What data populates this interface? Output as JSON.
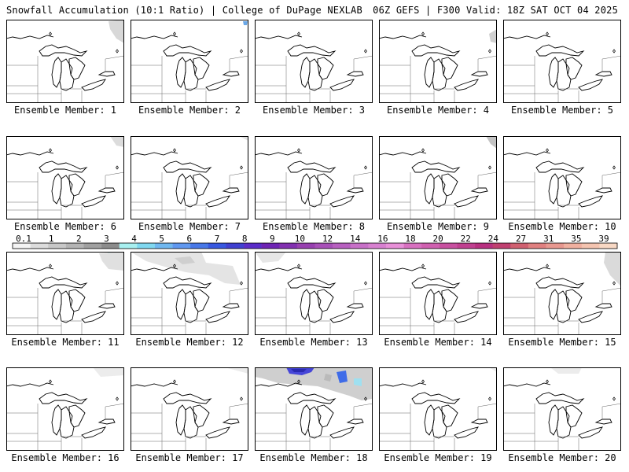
{
  "header": {
    "left_title": "Snowfall Accumulation (10:1 Ratio) | College of DuPage NEXLAB",
    "right_title": "06Z GEFS | F300 Valid: 18Z SAT OCT 04 2025"
  },
  "panels": [
    {
      "label": "Ensemble Member: 1"
    },
    {
      "label": "Ensemble Member: 2"
    },
    {
      "label": "Ensemble Member: 3"
    },
    {
      "label": "Ensemble Member: 4"
    },
    {
      "label": "Ensemble Member: 5"
    },
    {
      "label": "Ensemble Member: 6"
    },
    {
      "label": "Ensemble Member: 7"
    },
    {
      "label": "Ensemble Member: 8"
    },
    {
      "label": "Ensemble Member: 9"
    },
    {
      "label": "Ensemble Member: 10"
    },
    {
      "label": "Ensemble Member: 11"
    },
    {
      "label": "Ensemble Member: 12"
    },
    {
      "label": "Ensemble Member: 13"
    },
    {
      "label": "Ensemble Member: 14"
    },
    {
      "label": "Ensemble Member: 15"
    },
    {
      "label": "Ensemble Member: 16"
    },
    {
      "label": "Ensemble Member: 17"
    },
    {
      "label": "Ensemble Member: 18"
    },
    {
      "label": "Ensemble Member: 19"
    },
    {
      "label": "Ensemble Member: 20"
    }
  ],
  "colorbar": {
    "labels": [
      "0.1",
      "1",
      "2",
      "3",
      "4",
      "5",
      "6",
      "7",
      "8",
      "9",
      "10",
      "12",
      "14",
      "16",
      "18",
      "20",
      "22",
      "24",
      "27",
      "31",
      "35",
      "39"
    ],
    "colors": [
      "#f4f4f4",
      "#dcdcdc",
      "#c8c8c8",
      "#b4b4b4",
      "#a0a0a0",
      "#8c8c8c",
      "#a8f0f0",
      "#80d8f0",
      "#70b8f0",
      "#6098f0",
      "#4878e8",
      "#3858e0",
      "#4040d0",
      "#5a2cc8",
      "#6e24b4",
      "#8230b0",
      "#9840b0",
      "#a850b8",
      "#b860c0",
      "#c870c8",
      "#d880d0",
      "#e890d8",
      "#d870c0",
      "#d060b0",
      "#c850a0",
      "#c04090",
      "#b83080",
      "#c04070",
      "#d06070",
      "#e08080",
      "#e89890",
      "#f0b0a0",
      "#f4c4b0",
      "#f8d8c4"
    ]
  }
}
